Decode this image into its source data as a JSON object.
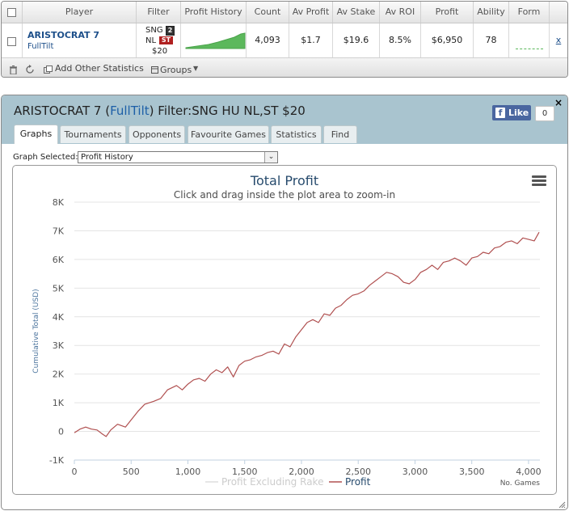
{
  "stats_table": {
    "columns": [
      "Player",
      "Filter",
      "Profit History",
      "Count",
      "Av Profit",
      "Av Stake",
      "Av ROI",
      "Profit",
      "Ability",
      "Form"
    ],
    "row": {
      "player_name": "ARISTOCRAT 7",
      "player_site": "FullTilt",
      "filter_line1": "SNG",
      "filter_badge_players": "2",
      "filter_line2": "NL",
      "filter_badge_speed": "ST",
      "filter_stake": "$20",
      "count": "4,093",
      "av_profit": "$1.7",
      "av_stake": "$19.6",
      "av_roi": "8.5%",
      "profit": "$6,950",
      "ability": "78",
      "remove": "x"
    },
    "footer": {
      "add_stats_label": "Add Other Statistics",
      "groups_label": "Groups"
    }
  },
  "graph_panel": {
    "title_prefix": "ARISTOCRAT 7 (",
    "title_site": "FullTilt",
    "title_suffix": ") Filter:SNG HU NL,ST $20",
    "fb_like_label": "Like",
    "fb_like_count": "0",
    "close_label": "×",
    "tabs": [
      "Graphs",
      "Tournaments",
      "Opponents",
      "Favourite Games",
      "Statistics",
      "Find"
    ],
    "active_tab": "Graphs",
    "graph_selected_label": "Graph Selected:",
    "graph_selected_value": "Profit History"
  },
  "chart_data": {
    "type": "line",
    "title": "Total Profit",
    "subtitle": "Click and drag inside the plot area to zoom-in",
    "ylabel": "Cumulative Total (USD)",
    "xlabel": "No. Games",
    "xlim": [
      0,
      4100
    ],
    "ylim": [
      -1000,
      8000
    ],
    "x_ticks": [
      "0",
      "500",
      "1,000",
      "1,500",
      "2,000",
      "2,500",
      "3,000",
      "3,500",
      "4,000"
    ],
    "y_ticks": [
      "-1K",
      "0",
      "1K",
      "2K",
      "3K",
      "4K",
      "5K",
      "6K",
      "7K",
      "8K"
    ],
    "grid": true,
    "legend_position": "bottom-center",
    "series": [
      {
        "name": "Profit Excluding Rake",
        "color": "#dddddd",
        "visible": false,
        "x": [],
        "y": []
      },
      {
        "name": "Profit",
        "color": "#b05050",
        "visible": true,
        "x": [
          0,
          50,
          100,
          150,
          200,
          250,
          280,
          320,
          380,
          450,
          500,
          560,
          620,
          700,
          760,
          820,
          900,
          950,
          1000,
          1050,
          1100,
          1150,
          1200,
          1250,
          1300,
          1350,
          1400,
          1450,
          1500,
          1550,
          1600,
          1650,
          1700,
          1750,
          1800,
          1850,
          1900,
          1950,
          2000,
          2050,
          2100,
          2150,
          2200,
          2250,
          2300,
          2350,
          2400,
          2450,
          2500,
          2550,
          2600,
          2650,
          2700,
          2750,
          2800,
          2850,
          2900,
          2950,
          3000,
          3050,
          3100,
          3150,
          3200,
          3250,
          3300,
          3350,
          3400,
          3450,
          3500,
          3550,
          3600,
          3650,
          3700,
          3750,
          3800,
          3850,
          3900,
          3950,
          4000,
          4050,
          4093
        ],
        "y": [
          -50,
          80,
          150,
          80,
          50,
          -100,
          -180,
          50,
          250,
          150,
          400,
          700,
          950,
          1050,
          1150,
          1450,
          1600,
          1450,
          1650,
          1800,
          1850,
          1750,
          2000,
          2150,
          2050,
          2250,
          1900,
          2300,
          2450,
          2500,
          2600,
          2650,
          2750,
          2800,
          2700,
          3050,
          2950,
          3300,
          3550,
          3800,
          3900,
          3800,
          4100,
          4050,
          4300,
          4400,
          4600,
          4750,
          4800,
          4900,
          5100,
          5250,
          5400,
          5550,
          5500,
          5400,
          5200,
          5150,
          5300,
          5550,
          5650,
          5800,
          5650,
          5900,
          5950,
          6050,
          5950,
          5800,
          6050,
          6100,
          6250,
          6200,
          6400,
          6450,
          6600,
          6650,
          6550,
          6750,
          6700,
          6650,
          6950
        ]
      }
    ]
  }
}
